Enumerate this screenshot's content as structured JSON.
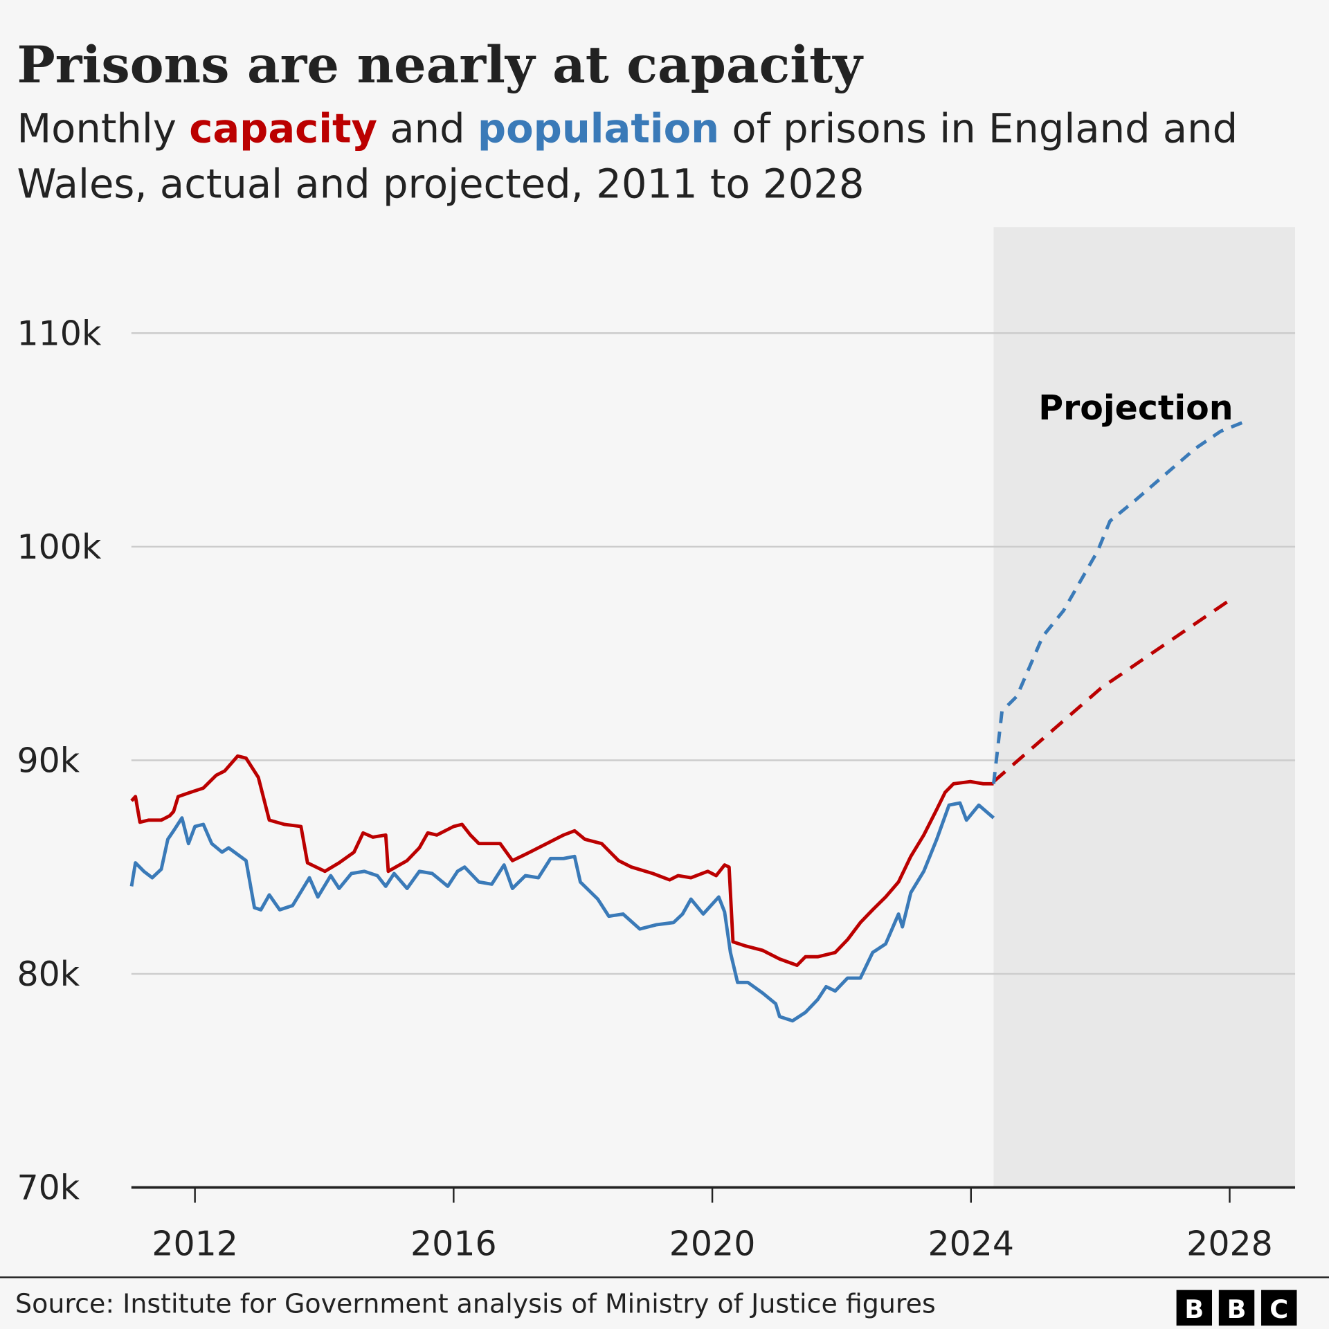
{
  "colors": {
    "capacity": "#bb0000",
    "population": "#3a7ab8",
    "projection_shade": "#e8e8e8",
    "background": "#f6f6f6"
  },
  "source": "Source: Institute for Government analysis of Ministry of Justice figures",
  "logo": [
    "B",
    "B",
    "C"
  ],
  "chart_data": {
    "type": "line",
    "title": "Prisons are nearly at capacity",
    "subtitle_parts": [
      "Monthly ",
      "capacity",
      " and ",
      "population",
      " of prisons in England and",
      "Wales, actual and projected, 2011 to 2028"
    ],
    "xlim": [
      2011.0,
      2029.0
    ],
    "ylim": [
      70000,
      112000
    ],
    "x_ticks": [
      2012,
      2016,
      2020,
      2024,
      2028
    ],
    "x_tick_labels": [
      "2012",
      "2016",
      "2020",
      "2024",
      "2028"
    ],
    "y_ticks": [
      70000,
      80000,
      90000,
      100000,
      110000
    ],
    "y_tick_labels": [
      "70k",
      "80k",
      "90k",
      "100k",
      "110k"
    ],
    "grid": true,
    "projection_start": 2024.35,
    "annotation": "Projection",
    "series": [
      {
        "name": "capacity",
        "style": "solid",
        "x": [
          2011.02,
          2011.08,
          2011.15,
          2011.28,
          2011.48,
          2011.61,
          2011.67,
          2011.74,
          2011.93,
          2012.13,
          2012.33,
          2012.46,
          2012.66,
          2012.79,
          2012.98,
          2013.15,
          2013.38,
          2013.64,
          2013.74,
          2014.01,
          2014.23,
          2014.46,
          2014.6,
          2014.75,
          2014.95,
          2014.99,
          2015.28,
          2015.47,
          2015.6,
          2015.74,
          2016.0,
          2016.13,
          2016.26,
          2016.39,
          2016.72,
          2016.91,
          2017.18,
          2017.44,
          2017.7,
          2017.87,
          2018.03,
          2018.29,
          2018.55,
          2018.75,
          2019.08,
          2019.34,
          2019.47,
          2019.67,
          2019.93,
          2020.06,
          2020.19,
          2020.26,
          2020.32,
          2020.52,
          2020.78,
          2021.04,
          2021.31,
          2021.44,
          2021.63,
          2021.9,
          2022.09,
          2022.29,
          2022.48,
          2022.68,
          2022.88,
          2023.07,
          2023.27,
          2023.47,
          2023.6,
          2023.73,
          2023.99,
          2024.19,
          2024.35
        ],
        "y": [
          88100,
          88300,
          87100,
          87200,
          87200,
          87400,
          87600,
          88300,
          88500,
          88700,
          89300,
          89500,
          90200,
          90100,
          89200,
          87200,
          87000,
          86900,
          85200,
          84800,
          85200,
          85700,
          86600,
          86400,
          86500,
          84800,
          85300,
          85900,
          86600,
          86500,
          86900,
          87000,
          86500,
          86100,
          86100,
          85300,
          85700,
          86100,
          86500,
          86700,
          86300,
          86100,
          85300,
          85000,
          84700,
          84400,
          84600,
          84500,
          84800,
          84600,
          85100,
          85000,
          81500,
          81300,
          81100,
          80700,
          80400,
          80800,
          80800,
          81000,
          81600,
          82400,
          83000,
          83600,
          84300,
          85500,
          86500,
          87700,
          88500,
          88900,
          89000,
          88900,
          88900
        ]
      },
      {
        "name": "capacity projected",
        "style": "dashed",
        "x": [
          2024.35,
          2026.02,
          2028.05
        ],
        "y": [
          89000,
          93400,
          97600
        ]
      },
      {
        "name": "population",
        "style": "solid",
        "x": [
          2011.02,
          2011.08,
          2011.21,
          2011.34,
          2011.48,
          2011.58,
          2011.67,
          2011.8,
          2011.9,
          2012.0,
          2012.13,
          2012.26,
          2012.42,
          2012.52,
          2012.79,
          2012.92,
          2013.02,
          2013.15,
          2013.31,
          2013.51,
          2013.77,
          2013.9,
          2014.1,
          2014.23,
          2014.42,
          2014.62,
          2014.82,
          2014.95,
          2015.08,
          2015.28,
          2015.47,
          2015.67,
          2015.91,
          2016.06,
          2016.17,
          2016.39,
          2016.59,
          2016.78,
          2016.91,
          2017.11,
          2017.31,
          2017.5,
          2017.7,
          2017.87,
          2017.96,
          2018.23,
          2018.4,
          2018.62,
          2018.88,
          2019.14,
          2019.4,
          2019.54,
          2019.67,
          2019.86,
          2020.1,
          2020.19,
          2020.28,
          2020.39,
          2020.55,
          2020.78,
          2020.98,
          2021.04,
          2021.24,
          2021.44,
          2021.63,
          2021.76,
          2021.9,
          2022.09,
          2022.29,
          2022.48,
          2022.68,
          2022.88,
          2022.94,
          2023.07,
          2023.27,
          2023.47,
          2023.66,
          2023.83,
          2023.93,
          2024.12,
          2024.35
        ],
        "y": [
          84100,
          85200,
          84800,
          84500,
          84900,
          86300,
          86700,
          87300,
          86100,
          86900,
          87000,
          86100,
          85700,
          85900,
          85300,
          83100,
          83000,
          83700,
          83000,
          83200,
          84500,
          83600,
          84600,
          84000,
          84700,
          84800,
          84600,
          84100,
          84700,
          84000,
          84800,
          84700,
          84100,
          84800,
          85000,
          84300,
          84200,
          85100,
          84000,
          84600,
          84500,
          85400,
          85400,
          85500,
          84300,
          83500,
          82700,
          82800,
          82100,
          82300,
          82400,
          82800,
          83500,
          82800,
          83600,
          82900,
          81000,
          79600,
          79600,
          79100,
          78600,
          78000,
          77800,
          78200,
          78800,
          79400,
          79200,
          79800,
          79800,
          81000,
          81400,
          82800,
          82200,
          83800,
          84800,
          86300,
          87900,
          88000,
          87200,
          87900,
          87300
        ]
      },
      {
        "name": "population projected",
        "style": "dashed",
        "x": [
          2024.35,
          2024.48,
          2024.71,
          2025.11,
          2025.43,
          2025.96,
          2026.15,
          2026.55,
          2027.01,
          2027.47,
          2027.86,
          2028.19
        ],
        "y": [
          88900,
          92300,
          93000,
          95800,
          97000,
          99800,
          101200,
          102200,
          103400,
          104600,
          105400,
          105800
        ]
      }
    ]
  }
}
